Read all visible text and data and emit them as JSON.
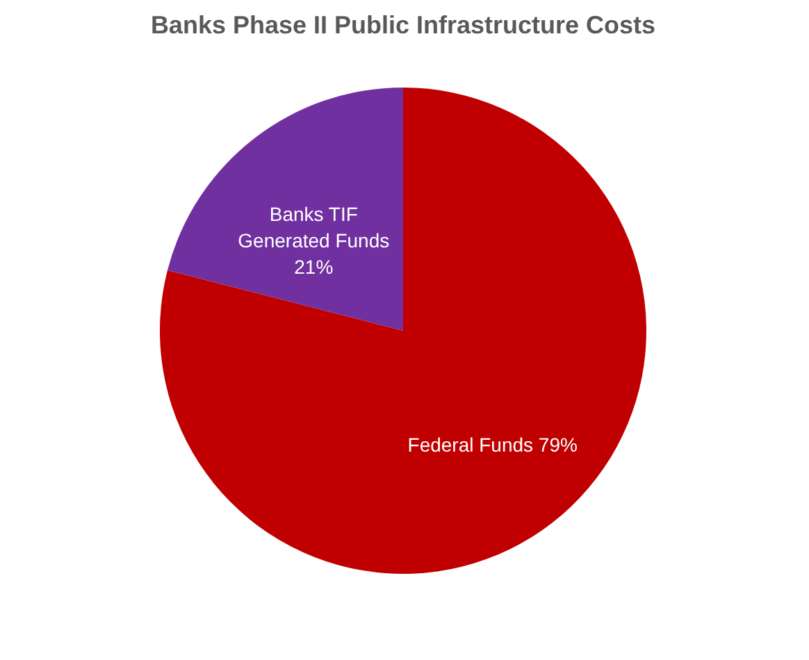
{
  "chart_data": {
    "type": "pie",
    "title": "Banks Phase II Public Infrastructure Costs",
    "categories": [
      "Federal Funds",
      "Banks TIF Generated Funds"
    ],
    "values": [
      79,
      21
    ],
    "colors": [
      "#c00000",
      "#7030a0"
    ],
    "value_labels": [
      "79%",
      "21%"
    ],
    "legend": false
  }
}
